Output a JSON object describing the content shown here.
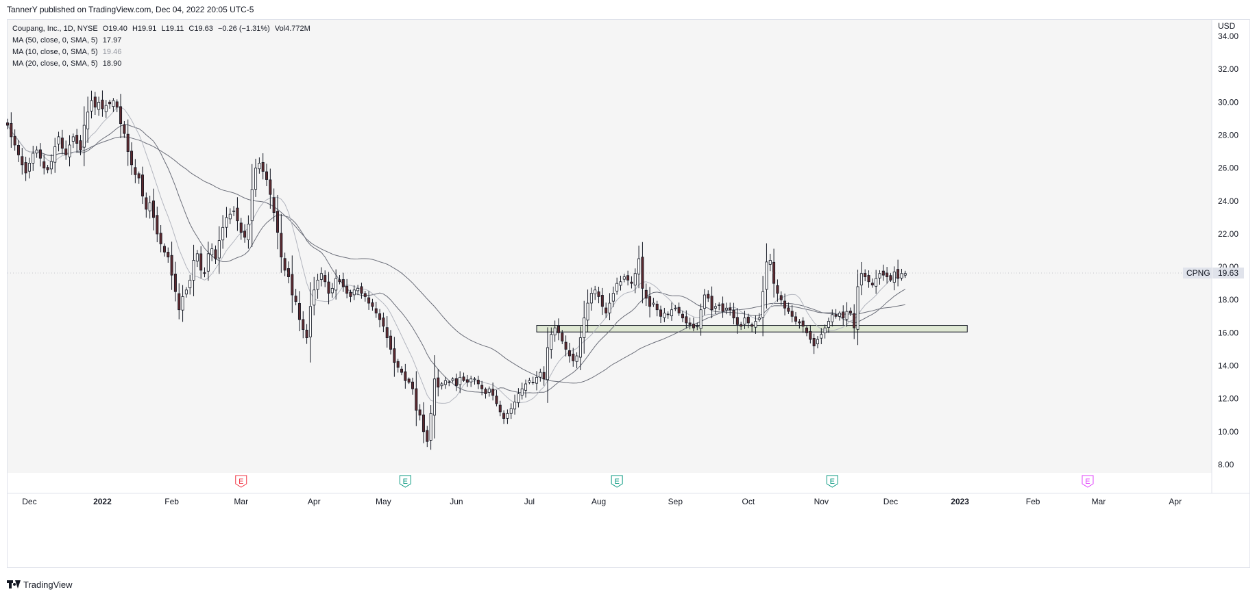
{
  "header": {
    "published_text": "TannerY published on TradingView.com, Dec 04, 2022 20:05 UTC-5"
  },
  "legend": {
    "symbol_line": "Coupang, Inc., 1D, NYSE",
    "open": "O19.40",
    "high": "H19.91",
    "low": "L19.11",
    "close": "C19.63",
    "change": "−0.26 (−1.31%)",
    "volume": "Vol4.772M",
    "indicators": [
      {
        "label": "MA (50, close, 0, SMA, 5)",
        "value": "17.97",
        "color": "#131722"
      },
      {
        "label": "MA (10, close, 0, SMA, 5)",
        "value": "19.46",
        "color": "#9598a1"
      },
      {
        "label": "MA (20, close, 0, SMA, 5)",
        "value": "18.90",
        "color": "#131722"
      }
    ]
  },
  "footer": {
    "brand": "TradingView"
  },
  "chart_data": {
    "type": "candlestick",
    "symbol": "CPNG",
    "currency": "USD",
    "last_price": "19.63",
    "ylim": [
      7.5,
      35.0
    ],
    "y_ticks": [
      "34.00",
      "32.00",
      "30.00",
      "28.00",
      "26.00",
      "24.00",
      "22.00",
      "20.00",
      "18.00",
      "16.00",
      "14.00",
      "12.00",
      "10.00",
      "8.00"
    ],
    "x_ticks": [
      {
        "label": "Dec",
        "bold": false
      },
      {
        "label": "2022",
        "bold": true
      },
      {
        "label": "Feb",
        "bold": false
      },
      {
        "label": "Mar",
        "bold": false
      },
      {
        "label": "Apr",
        "bold": false
      },
      {
        "label": "May",
        "bold": false
      },
      {
        "label": "Jun",
        "bold": false
      },
      {
        "label": "Jul",
        "bold": false
      },
      {
        "label": "Aug",
        "bold": false
      },
      {
        "label": "Sep",
        "bold": false
      },
      {
        "label": "Oct",
        "bold": false
      },
      {
        "label": "Nov",
        "bold": false
      },
      {
        "label": "Dec",
        "bold": false
      },
      {
        "label": "2023",
        "bold": true
      },
      {
        "label": "Feb",
        "bold": false
      },
      {
        "label": "Mar",
        "bold": false
      },
      {
        "label": "Apr",
        "bold": false
      }
    ],
    "x_tick_index": [
      6,
      26,
      45,
      64,
      84,
      103,
      123,
      143,
      162,
      183,
      203,
      223,
      242,
      261,
      281,
      299,
      320
    ],
    "index_range": [
      0,
      330
    ],
    "support_zone": {
      "low": 16.05,
      "high": 16.45,
      "start_index": 145,
      "end_index": 263,
      "color": "#dfe8d3"
    },
    "earnings_markers": [
      {
        "index": 64,
        "label": "E",
        "color": "#f23645"
      },
      {
        "index": 109,
        "label": "E",
        "color": "#089981"
      },
      {
        "index": 167,
        "label": "E",
        "color": "#089981"
      },
      {
        "index": 226,
        "label": "E",
        "color": "#089981"
      },
      {
        "index": 296,
        "label": "E",
        "color": "#e040fb"
      }
    ],
    "candles_close": [
      28.6,
      27.9,
      27.4,
      26.8,
      26.2,
      25.7,
      26.3,
      26.9,
      27.1,
      26.6,
      26.0,
      25.9,
      26.4,
      27.3,
      27.9,
      27.2,
      26.8,
      27.4,
      27.9,
      27.5,
      27.1,
      28.6,
      29.4,
      30.1,
      29.7,
      30.0,
      29.6,
      29.8,
      29.9,
      30.1,
      29.7,
      28.7,
      28.1,
      27.0,
      26.2,
      25.6,
      25.4,
      24.3,
      23.5,
      23.9,
      23.0,
      22.0,
      21.4,
      20.9,
      20.6,
      19.5,
      18.5,
      17.4,
      18.2,
      18.6,
      19.2,
      20.4,
      20.8,
      19.8,
      19.6,
      20.8,
      21.1,
      20.5,
      21.6,
      22.4,
      23.0,
      23.2,
      23.4,
      22.8,
      22.1,
      21.8,
      22.6,
      24.7,
      26.0,
      26.3,
      25.8,
      25.3,
      24.4,
      23.3,
      22.1,
      20.6,
      19.8,
      19.4,
      18.3,
      17.9,
      16.8,
      16.2,
      15.7,
      17.6,
      18.6,
      19.2,
      19.6,
      19.1,
      18.4,
      18.7,
      19.3,
      19.1,
      18.8,
      18.4,
      18.2,
      18.6,
      18.7,
      18.4,
      18.2,
      17.8,
      17.6,
      17.2,
      16.8,
      16.4,
      15.7,
      15.0,
      14.2,
      13.9,
      13.6,
      13.1,
      13.0,
      12.6,
      11.3,
      11.0,
      10.0,
      9.4,
      11.1,
      13.2,
      12.7,
      12.9,
      13.1,
      13.0,
      13.2,
      12.8,
      13.3,
      13.1,
      13.0,
      13.2,
      13.2,
      12.9,
      12.6,
      12.3,
      12.6,
      12.2,
      11.7,
      11.2,
      10.8,
      11.1,
      11.4,
      11.8,
      12.3,
      12.6,
      12.9,
      13.1,
      13.0,
      13.3,
      13.6,
      13.2,
      15.1,
      15.9,
      16.3,
      16.0,
      15.5,
      15.0,
      14.6,
      14.3,
      14.6,
      15.7,
      16.9,
      17.8,
      18.4,
      18.6,
      18.2,
      17.6,
      17.2,
      17.8,
      18.4,
      19.0,
      19.1,
      19.4,
      19.2,
      19.0,
      19.6,
      20.5,
      18.7,
      18.1,
      17.6,
      17.8,
      17.4,
      17.0,
      17.2,
      17.1,
      17.4,
      17.5,
      17.2,
      16.9,
      16.6,
      16.5,
      16.3,
      16.4,
      17.4,
      18.3,
      18.1,
      17.4,
      17.6,
      17.7,
      17.3,
      17.5,
      17.4,
      16.9,
      16.5,
      16.4,
      16.9,
      16.6,
      16.4,
      16.7,
      16.9,
      18.5,
      20.3,
      20.4,
      19.0,
      18.4,
      18.0,
      17.5,
      17.3,
      17.0,
      16.7,
      16.6,
      16.4,
      16.0,
      15.6,
      15.2,
      15.6,
      15.9,
      16.3,
      16.7,
      17.1,
      17.0,
      17.2,
      16.9,
      17.3,
      17.2,
      16.3,
      18.8,
      19.6,
      19.4,
      19.1,
      18.9,
      19.3,
      19.6,
      19.5,
      19.4,
      19.2,
      19.7,
      19.3,
      19.6,
      19.6
    ]
  }
}
